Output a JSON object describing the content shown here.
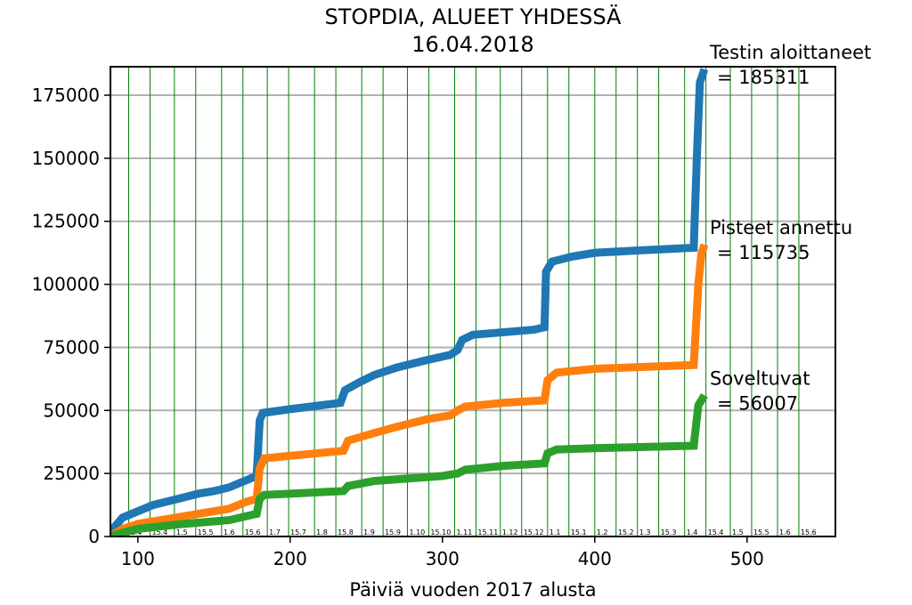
{
  "chart_data": {
    "type": "line",
    "title": "STOPDIA, ALUEET YHDESSÄ",
    "subtitle": "16.04.2018",
    "x_label": "Päiviä vuoden 2017 alusta",
    "xlim": [
      82,
      558
    ],
    "xticks": [
      100,
      200,
      300,
      400,
      500
    ],
    "ylim": [
      0,
      186300
    ],
    "yticks": [
      0,
      25000,
      50000,
      75000,
      100000,
      125000,
      150000,
      175000
    ],
    "grid": true,
    "series": [
      {
        "color": "#1f77b4",
        "x": [
          82,
          85,
          90,
          100,
          110,
          120,
          130,
          140,
          150,
          160,
          170,
          178,
          180,
          182,
          200,
          220,
          233,
          236,
          245,
          255,
          270,
          290,
          305,
          310,
          313,
          320,
          340,
          360,
          367,
          368,
          372,
          385,
          400,
          430,
          465,
          467,
          469,
          472
        ],
        "values": [
          0,
          4000,
          7500,
          10000,
          12500,
          14000,
          15500,
          17000,
          18000,
          19500,
          22000,
          24000,
          46000,
          49000,
          50500,
          52000,
          53000,
          58000,
          61000,
          64000,
          67000,
          70000,
          72000,
          74000,
          78000,
          80000,
          81000,
          82000,
          83000,
          105000,
          109000,
          111000,
          112500,
          113500,
          114500,
          150000,
          180000,
          185311
        ],
        "annotation": [
          "Testin aloittaneet",
          "= 185311"
        ]
      },
      {
        "color": "#ff7f0e",
        "x": [
          82,
          90,
          100,
          120,
          140,
          160,
          170,
          178,
          180,
          183,
          200,
          235,
          238,
          255,
          270,
          290,
          305,
          310,
          315,
          340,
          367,
          369,
          375,
          400,
          465,
          468,
          470,
          472
        ],
        "values": [
          0,
          3000,
          5000,
          7000,
          9000,
          11000,
          13500,
          15000,
          27000,
          31000,
          32000,
          34000,
          38000,
          41000,
          43500,
          46500,
          48000,
          50000,
          51500,
          53000,
          54000,
          62000,
          65000,
          66500,
          68000,
          100000,
          112000,
          115735
        ],
        "annotation": [
          "Pisteet annettu",
          "= 115735"
        ]
      },
      {
        "color": "#2ca02c",
        "x": [
          82,
          90,
          100,
          130,
          160,
          178,
          180,
          183,
          200,
          235,
          238,
          255,
          300,
          310,
          315,
          340,
          367,
          369,
          375,
          400,
          465,
          468,
          472
        ],
        "values": [
          0,
          1500,
          3000,
          5000,
          6500,
          9000,
          15000,
          16500,
          17000,
          18000,
          20000,
          22000,
          24000,
          25000,
          26500,
          28000,
          29000,
          33000,
          34500,
          35000,
          36000,
          52000,
          56007
        ],
        "annotation": [
          "Soveltuvat",
          "= 56007"
        ]
      }
    ],
    "vlines": {
      "color": "#008000",
      "x": [
        94,
        108,
        124,
        138,
        155,
        169,
        185,
        199,
        216,
        230,
        247,
        261,
        277,
        291,
        308,
        322,
        338,
        352,
        369,
        383,
        400,
        414,
        428,
        442,
        459,
        473,
        489,
        503,
        520,
        534
      ],
      "labels": [
        "1.4",
        "15.4",
        "1.5",
        "15.5",
        "1.6",
        "15.6",
        "1.7",
        "15.7",
        "1.8",
        "15.8",
        "1.9",
        "15.9",
        "1.10",
        "15.10",
        "1.11",
        "15.11",
        "1.12",
        "15.12",
        "1.1",
        "15.1",
        "1.2",
        "15.2",
        "1.3",
        "15.3",
        "1.4",
        "15.4",
        "1.5",
        "15.5",
        "1.6",
        "15.6"
      ]
    }
  }
}
